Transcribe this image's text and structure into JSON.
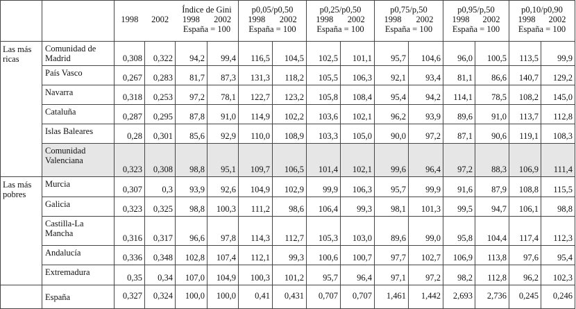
{
  "header": {
    "gini": {
      "title": "Índice de Gini",
      "y1": "1998",
      "y2": "2002",
      "y3": "1998",
      "y4": "2002",
      "sub": "España = 100"
    },
    "g1": {
      "title": "p0,05/p0,50",
      "y1": "1998",
      "y2": "2002",
      "sub": "España = 100"
    },
    "g2": {
      "title": "p0,25/p0,50",
      "y1": "1998",
      "y2": "2002",
      "sub": "España = 100"
    },
    "g3": {
      "title": "p0,75/p,50",
      "y1": "1998",
      "y2": "2002",
      "sub": "España = 100"
    },
    "g4": {
      "title": "p0,95/p,50",
      "y1": "1998",
      "y2": "2002",
      "sub": "España = 100"
    },
    "g5": {
      "title": "p0,10/p0,90",
      "y1": "1998",
      "y2": "2002",
      "sub": "España = 100"
    }
  },
  "groups": {
    "ricas": "Las más ricas",
    "pobres": "Las más pobres"
  },
  "rows": [
    {
      "region": "Comunidad de Madrid",
      "v": [
        "0,308",
        "0,322",
        "94,2",
        "99,4",
        "116,5",
        "104,5",
        "102,5",
        "101,1",
        "95,7",
        "104,6",
        "96,0",
        "100,5",
        "113,5",
        "99,9"
      ]
    },
    {
      "region": "País Vasco",
      "v": [
        "0,267",
        "0,283",
        "81,7",
        "87,3",
        "131,3",
        "118,2",
        "105,5",
        "106,3",
        "92,1",
        "93,4",
        "81,1",
        "86,6",
        "140,7",
        "129,2"
      ]
    },
    {
      "region": "Navarra",
      "v": [
        "0,318",
        "0,253",
        "97,2",
        "78,1",
        "122,7",
        "123,2",
        "105,8",
        "108,4",
        "95,4",
        "94,2",
        "114,1",
        "78,5",
        "108,2",
        "145,0"
      ]
    },
    {
      "region": "Cataluña",
      "v": [
        "0,287",
        "0,295",
        "87,8",
        "91,0",
        "114,9",
        "102,2",
        "103,6",
        "102,1",
        "96,2",
        "93,9",
        "89,6",
        "91,0",
        "113,7",
        "112,8"
      ]
    },
    {
      "region": "Islas Baleares",
      "v": [
        "0,28",
        "0,301",
        "85,6",
        "92,9",
        "110,0",
        "108,9",
        "103,3",
        "105,0",
        "90,0",
        "97,2",
        "87,1",
        "90,6",
        "119,1",
        "108,3"
      ]
    },
    {
      "region": "Comunidad Valenciana",
      "v": [
        "0,323",
        "0,308",
        "98,8",
        "95,1",
        "109,7",
        "106,5",
        "101,4",
        "102,1",
        "99,6",
        "96,4",
        "97,2",
        "88,3",
        "106,9",
        "111,4"
      ]
    },
    {
      "region": "Murcia",
      "v": [
        "0,307",
        "0,3",
        "93,9",
        "92,6",
        "104,9",
        "102,9",
        "99,9",
        "106,3",
        "95,7",
        "99,9",
        "91,6",
        "87,9",
        "108,8",
        "115,5"
      ]
    },
    {
      "region": "Galicia",
      "v": [
        "0,323",
        "0,325",
        "98,8",
        "100,3",
        "111,2",
        "98,6",
        "106,4",
        "99,3",
        "98,1",
        "101,3",
        "99,5",
        "94,7",
        "106,1",
        "98,8"
      ]
    },
    {
      "region": "Castilla-La Mancha",
      "v": [
        "0,316",
        "0,317",
        "96,6",
        "97,8",
        "114,3",
        "112,7",
        "105,3",
        "103,0",
        "89,6",
        "99,0",
        "95,8",
        "104,4",
        "117,4",
        "112,3"
      ]
    },
    {
      "region": "Andalucía",
      "v": [
        "0,336",
        "0,348",
        "102,8",
        "107,4",
        "112,1",
        "99,3",
        "100,6",
        "100,7",
        "97,7",
        "102,7",
        "106,9",
        "113,8",
        "97,6",
        "95,4"
      ]
    },
    {
      "region": "Extremadura",
      "v": [
        "0,35",
        "0,34",
        "107,0",
        "104,9",
        "100,3",
        "101,2",
        "95,7",
        "96,4",
        "97,1",
        "97,2",
        "98,2",
        "112,8",
        "96,2",
        "102,3"
      ]
    }
  ],
  "total": {
    "region": "España",
    "v": [
      "0,327",
      "0,324",
      "100,0",
      "100,0",
      "0,41",
      "0,431",
      "0,707",
      "0,707",
      "1,461",
      "1,442",
      "2,693",
      "2,736",
      "0,245",
      "0,246"
    ]
  }
}
